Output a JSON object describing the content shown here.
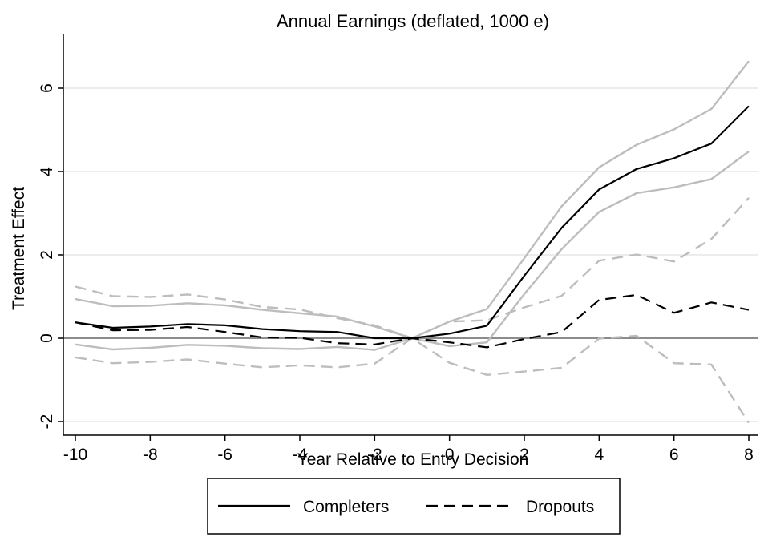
{
  "chart_data": {
    "type": "line",
    "title": "Annual Earnings (deflated, 1000 e)",
    "xlabel": "Year Relative to Entry Decision",
    "ylabel": "Treatment Effect",
    "xlim": [
      -10,
      8
    ],
    "ylim": [
      -2.2,
      7.4
    ],
    "xticks": [
      -10,
      -8,
      -6,
      -4,
      -2,
      0,
      2,
      4,
      6,
      8
    ],
    "yticks": [
      -2,
      0,
      2,
      4,
      6
    ],
    "grid": true,
    "legend": {
      "placement": "bottom",
      "entries": [
        "Completers",
        "Dropouts"
      ]
    },
    "x": [
      -10,
      -9,
      -8,
      -7,
      -6,
      -5,
      -4,
      -3,
      -2,
      -1,
      0,
      1,
      2,
      3,
      4,
      5,
      6,
      7,
      8
    ],
    "series": [
      {
        "name": "Completers",
        "role": "estimate",
        "style": "solid",
        "color": "#000000",
        "values": [
          0.38,
          0.25,
          0.28,
          0.34,
          0.31,
          0.22,
          0.17,
          0.15,
          0.0,
          0.0,
          0.11,
          0.3,
          1.5,
          2.65,
          3.57,
          4.06,
          4.32,
          4.67,
          5.57
        ]
      },
      {
        "role": "upper-ci",
        "style": "solid",
        "color": "#bdbdbd",
        "values": [
          0.94,
          0.77,
          0.78,
          0.84,
          0.79,
          0.68,
          0.6,
          0.52,
          0.28,
          0.0,
          0.4,
          0.7,
          1.92,
          3.17,
          4.1,
          4.64,
          5.01,
          5.5,
          6.65
        ]
      },
      {
        "role": "lower-ci",
        "style": "solid",
        "color": "#bdbdbd",
        "values": [
          -0.15,
          -0.27,
          -0.23,
          -0.16,
          -0.18,
          -0.24,
          -0.26,
          -0.21,
          -0.28,
          0.0,
          -0.19,
          -0.1,
          1.06,
          2.14,
          3.03,
          3.48,
          3.62,
          3.82,
          4.48
        ]
      },
      {
        "name": "Dropouts",
        "role": "estimate",
        "style": "dashed",
        "color": "#000000",
        "values": [
          0.38,
          0.19,
          0.2,
          0.27,
          0.15,
          0.02,
          0.01,
          -0.12,
          -0.15,
          0.0,
          -0.1,
          -0.22,
          -0.02,
          0.15,
          0.92,
          1.04,
          0.61,
          0.86,
          0.68
        ]
      },
      {
        "role": "upper-ci",
        "style": "dashed",
        "color": "#bdbdbd",
        "values": [
          1.24,
          1.01,
          0.99,
          1.05,
          0.93,
          0.75,
          0.69,
          0.48,
          0.31,
          0.0,
          0.4,
          0.43,
          0.74,
          1.02,
          1.86,
          2.01,
          1.84,
          2.38,
          3.37
        ]
      },
      {
        "role": "lower-ci",
        "style": "dashed",
        "color": "#bdbdbd",
        "values": [
          -0.46,
          -0.6,
          -0.57,
          -0.51,
          -0.61,
          -0.7,
          -0.65,
          -0.7,
          -0.61,
          0.0,
          -0.59,
          -0.88,
          -0.8,
          -0.71,
          -0.01,
          0.06,
          -0.6,
          -0.63,
          -2.03
        ]
      }
    ]
  }
}
